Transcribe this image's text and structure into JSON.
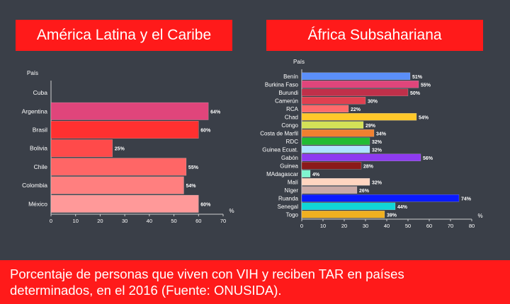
{
  "left_title": "América Latina y el Caribe",
  "right_title": "África Subsahariana",
  "caption_line1": "Porcentaje de personas que viven con VIH y reciben TAR en países",
  "caption_line2": "determinados, en el 2016 (Fuente: ONUSIDA).",
  "chart_data": [
    {
      "type": "bar",
      "orientation": "horizontal",
      "ylabel": "País",
      "xlabel": "%",
      "xlim": [
        0,
        70
      ],
      "xticks": [
        0,
        10,
        20,
        30,
        40,
        50,
        60,
        70
      ],
      "categories": [
        "Cuba",
        "Argentina",
        "Brasil",
        "Bolivia",
        "Chile",
        "Colombia",
        "México"
      ],
      "values": [
        null,
        64,
        60,
        25,
        55,
        54,
        60
      ],
      "data_labels": [
        "",
        "64%",
        "60%",
        "25%",
        "55%",
        "54%",
        "60%"
      ],
      "colors": [
        "#000000",
        "#e0457b",
        "#ff3030",
        "#ff4a4a",
        "#ff6666",
        "#ff7f7f",
        "#ff9999"
      ],
      "grid": false
    },
    {
      "type": "bar",
      "orientation": "horizontal",
      "ylabel": "País",
      "xlabel": "%",
      "xlim": [
        0,
        80
      ],
      "xticks": [
        0,
        10,
        20,
        30,
        40,
        50,
        60,
        70,
        80
      ],
      "categories": [
        "Benín",
        "Burkina Faso",
        "Burundi",
        "Camerún",
        "RCA",
        "Chad",
        "Congo",
        "Costa de Marfil",
        "RDC",
        "Guinea Ecuat.",
        "Gabón",
        "Guinea",
        "MAdagascar",
        "Malí",
        "Níger",
        "Ruanda",
        "Senegal",
        "Togo"
      ],
      "values": [
        51,
        55,
        50,
        30,
        22,
        54,
        29,
        34,
        32,
        32,
        56,
        28,
        4,
        32,
        26,
        74,
        44,
        39
      ],
      "data_labels": [
        "51%",
        "55%",
        "50%",
        "30%",
        "22%",
        "54%",
        "29%",
        "34%",
        "32%",
        "32%",
        "56%",
        "28%",
        "4%",
        "32%",
        "26%",
        "74%",
        "44%",
        "39%"
      ],
      "colors": [
        "#5b8ff9",
        "#e0457b",
        "#c0304a",
        "#e04050",
        "#ff6b6b",
        "#ffc82a",
        "#d4e157",
        "#f08030",
        "#22bb33",
        "#aee4ff",
        "#8e3bf0",
        "#8b1a1a",
        "#7ff5d0",
        "#ffd5c0",
        "#c9a9a6",
        "#0a1aff",
        "#11d6d6",
        "#f0b020"
      ],
      "grid": false
    }
  ]
}
